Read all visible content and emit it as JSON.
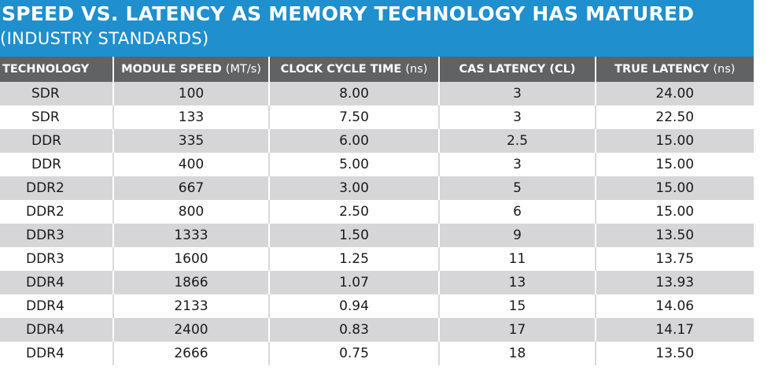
{
  "header": {
    "title": "SPEED VS. LATENCY AS MEMORY TECHNOLOGY HAS MATURED",
    "subtitle": "(INDUSTRY STANDARDS)",
    "band_color": "#1f8fce",
    "header_row_color": "#616264",
    "stripe_color": "#d6d6d8"
  },
  "chart_data": {
    "type": "table",
    "title": "SPEED VS. LATENCY AS MEMORY TECHNOLOGY HAS MATURED",
    "subtitle": "(INDUSTRY STANDARDS)",
    "columns": [
      {
        "label": "TECHNOLOGY",
        "unit": ""
      },
      {
        "label": "MODULE SPEED ",
        "unit": "(MT/s)"
      },
      {
        "label": "CLOCK CYCLE TIME ",
        "unit": "(ns)"
      },
      {
        "label": "CAS LATENCY (CL)",
        "unit": ""
      },
      {
        "label": "TRUE LATENCY ",
        "unit": "(ns)"
      }
    ],
    "rows": [
      [
        "SDR",
        "100",
        "8.00",
        "3",
        "24.00"
      ],
      [
        "SDR",
        "133",
        "7.50",
        "3",
        "22.50"
      ],
      [
        "DDR",
        "335",
        "6.00",
        "2.5",
        "15.00"
      ],
      [
        "DDR",
        "400",
        "5.00",
        "3",
        "15.00"
      ],
      [
        "DDR2",
        "667",
        "3.00",
        "5",
        "15.00"
      ],
      [
        "DDR2",
        "800",
        "2.50",
        "6",
        "15.00"
      ],
      [
        "DDR3",
        "1333",
        "1.50",
        "9",
        "13.50"
      ],
      [
        "DDR3",
        "1600",
        "1.25",
        "11",
        "13.75"
      ],
      [
        "DDR4",
        "1866",
        "1.07",
        "13",
        "13.93"
      ],
      [
        "DDR4",
        "2133",
        "0.94",
        "15",
        "14.06"
      ],
      [
        "DDR4",
        "2400",
        "0.83",
        "17",
        "14.17"
      ],
      [
        "DDR4",
        "2666",
        "0.75",
        "18",
        "13.50"
      ]
    ]
  }
}
